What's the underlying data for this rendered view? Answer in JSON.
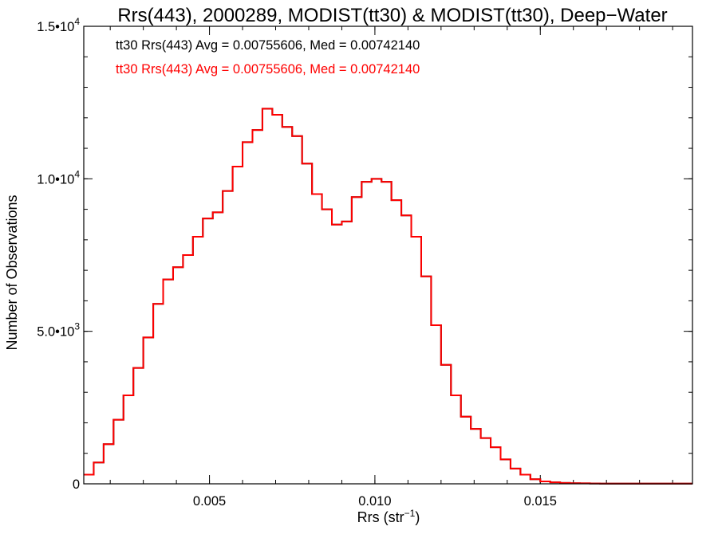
{
  "chart_data": {
    "type": "line",
    "title": "Rrs(443), 2000289, MODIST(tt30) & MODIST(tt30), Deep−Water",
    "xlabel_base": "Rrs (str",
    "xlabel_exp": "−1",
    "xlabel_close": ")",
    "ylabel": "Number of Observations",
    "xlim": [
      0.0012,
      0.0196
    ],
    "ylim": [
      0,
      15000
    ],
    "x_ticks": [
      {
        "value": 0.005,
        "label": "0.005"
      },
      {
        "value": 0.01,
        "label": "0.010"
      },
      {
        "value": 0.015,
        "label": "0.015"
      }
    ],
    "x_minor_step": 0.001,
    "y_ticks": [
      {
        "value": 0,
        "mant": "0",
        "exp": ""
      },
      {
        "value": 5000,
        "mant": "5.0•10",
        "exp": "3"
      },
      {
        "value": 10000,
        "mant": "1.0•10",
        "exp": "4"
      },
      {
        "value": 15000,
        "mant": "1.5•10",
        "exp": "4"
      }
    ],
    "y_minor_step": 1000,
    "annotations": [
      {
        "text": "tt30 Rrs(443) Avg = 0.00755606, Med = 0.00742140",
        "color": "#000000"
      },
      {
        "text": "tt30 Rrs(443) Avg = 0.00755606, Med = 0.00742140",
        "color": "#ff0000"
      }
    ],
    "series": [
      {
        "color": "#000000",
        "x": [
          0.0012,
          0.0015,
          0.0018,
          0.0021,
          0.0024,
          0.0027,
          0.003,
          0.0033,
          0.0036,
          0.0039,
          0.0042,
          0.0045,
          0.0048,
          0.0051,
          0.0054,
          0.0057,
          0.006,
          0.0063,
          0.0066,
          0.0069,
          0.0072,
          0.0075,
          0.0078,
          0.0081,
          0.0084,
          0.0087,
          0.009,
          0.0093,
          0.0096,
          0.0099,
          0.0102,
          0.0105,
          0.0108,
          0.0111,
          0.0114,
          0.0117,
          0.012,
          0.0123,
          0.0126,
          0.0129,
          0.0132,
          0.0135,
          0.0138,
          0.0141,
          0.0144,
          0.0147,
          0.015,
          0.0153,
          0.0156,
          0.0159,
          0.0162,
          0.0165,
          0.0168,
          0.0171,
          0.0174,
          0.018,
          0.019,
          0.0196
        ],
        "y": [
          300,
          700,
          1300,
          2100,
          2900,
          3800,
          4800,
          5900,
          6700,
          7100,
          7500,
          8100,
          8700,
          8900,
          9600,
          10400,
          11200,
          11600,
          12300,
          12100,
          11700,
          11400,
          10500,
          9500,
          9000,
          8500,
          8600,
          9400,
          9900,
          10000,
          9900,
          9300,
          8800,
          8100,
          6800,
          5200,
          3900,
          2900,
          2200,
          1800,
          1500,
          1200,
          800,
          500,
          300,
          150,
          80,
          50,
          30,
          20,
          15,
          10,
          8,
          6,
          5,
          5,
          5,
          5
        ]
      },
      {
        "color": "#ff0000",
        "x": [
          0.0012,
          0.0015,
          0.0018,
          0.0021,
          0.0024,
          0.0027,
          0.003,
          0.0033,
          0.0036,
          0.0039,
          0.0042,
          0.0045,
          0.0048,
          0.0051,
          0.0054,
          0.0057,
          0.006,
          0.0063,
          0.0066,
          0.0069,
          0.0072,
          0.0075,
          0.0078,
          0.0081,
          0.0084,
          0.0087,
          0.009,
          0.0093,
          0.0096,
          0.0099,
          0.0102,
          0.0105,
          0.0108,
          0.0111,
          0.0114,
          0.0117,
          0.012,
          0.0123,
          0.0126,
          0.0129,
          0.0132,
          0.0135,
          0.0138,
          0.0141,
          0.0144,
          0.0147,
          0.015,
          0.0153,
          0.0156,
          0.0159,
          0.0162,
          0.0165,
          0.0168,
          0.0171,
          0.0174,
          0.018,
          0.019,
          0.0196
        ],
        "y": [
          300,
          700,
          1300,
          2100,
          2900,
          3800,
          4800,
          5900,
          6700,
          7100,
          7500,
          8100,
          8700,
          8900,
          9600,
          10400,
          11200,
          11600,
          12300,
          12100,
          11700,
          11400,
          10500,
          9500,
          9000,
          8500,
          8600,
          9400,
          9900,
          10000,
          9900,
          9300,
          8800,
          8100,
          6800,
          5200,
          3900,
          2900,
          2200,
          1800,
          1500,
          1200,
          800,
          500,
          300,
          150,
          80,
          50,
          30,
          20,
          15,
          10,
          8,
          6,
          5,
          5,
          5,
          5
        ]
      }
    ]
  }
}
